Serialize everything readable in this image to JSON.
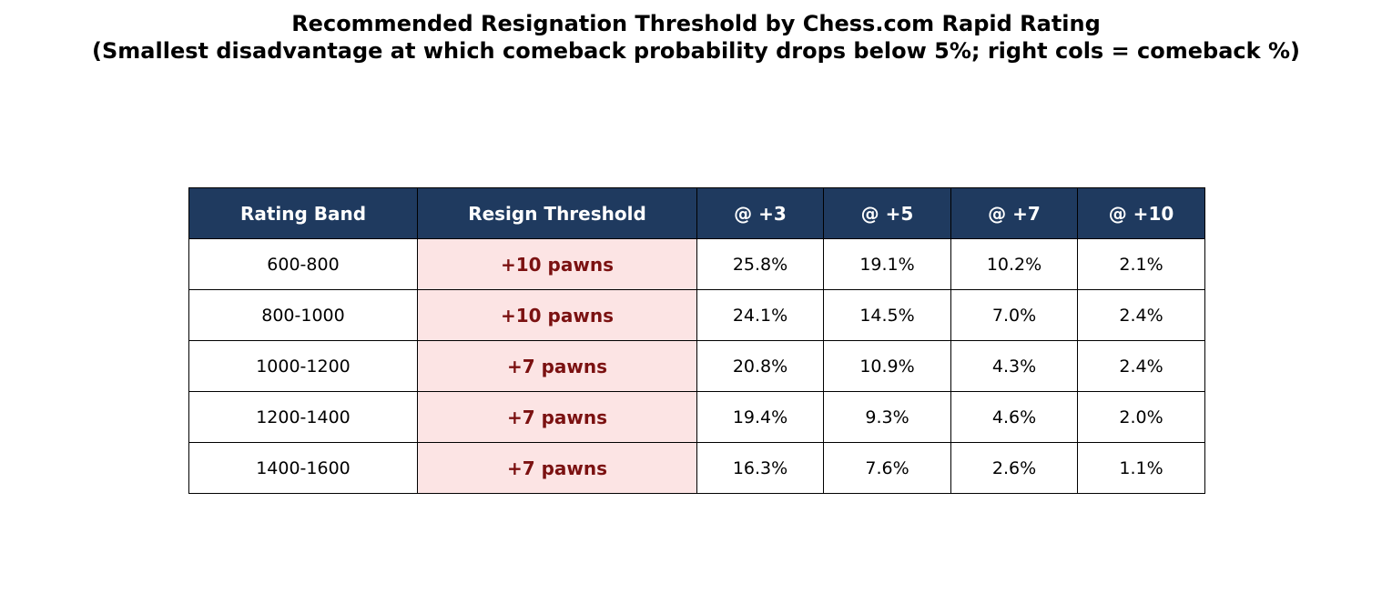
{
  "chart_data": {
    "type": "table",
    "title_line1": "Recommended Resignation Threshold by Chess.com Rapid Rating",
    "title_line2": "(Smallest disadvantage at which comeback probability drops below 5%; right cols = comeback %)",
    "columns": [
      "Rating Band",
      "Resign Threshold",
      "@ +3",
      "@ +5",
      "@ +7",
      "@ +10"
    ],
    "rows": [
      {
        "band": "600-800",
        "threshold": "+10 pawns",
        "values": [
          "25.8%",
          "19.1%",
          "10.2%",
          "2.1%"
        ]
      },
      {
        "band": "800-1000",
        "threshold": "+10 pawns",
        "values": [
          "24.1%",
          "14.5%",
          "7.0%",
          "2.4%"
        ]
      },
      {
        "band": "1000-1200",
        "threshold": "+7 pawns",
        "values": [
          "20.8%",
          "10.9%",
          "4.3%",
          "2.4%"
        ]
      },
      {
        "band": "1200-1400",
        "threshold": "+7 pawns",
        "values": [
          "19.4%",
          "9.3%",
          "4.6%",
          "2.0%"
        ]
      },
      {
        "band": "1400-1600",
        "threshold": "+7 pawns",
        "values": [
          "16.3%",
          "7.6%",
          "2.6%",
          "1.1%"
        ]
      }
    ],
    "colors": {
      "header_background": "#1f3a5f",
      "header_text": "#ffffff",
      "threshold_background": "#fce4e4",
      "threshold_text": "#7b1111"
    }
  }
}
